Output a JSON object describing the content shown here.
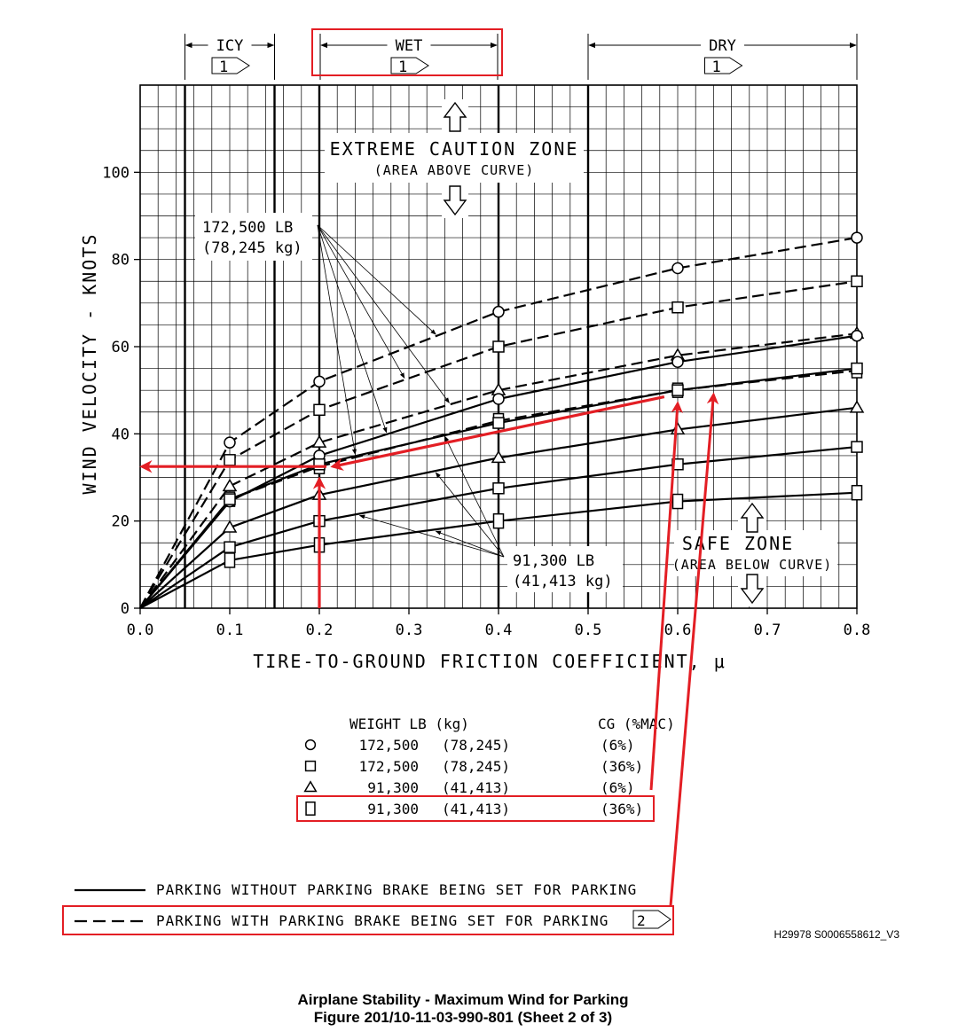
{
  "chart_data": {
    "type": "line",
    "title": "Airplane Stability - Maximum Wind for Parking",
    "subtitle": "Figure 201/10-11-03-990-801  (Sheet 2 of 3)",
    "figure_id": "H29978 S0006558612_V3",
    "xlabel": "TIRE-TO-GROUND FRICTION COEFFICIENT, μ",
    "ylabel": "WIND VELOCITY - KNOTS",
    "xlim": [
      0.0,
      0.8
    ],
    "ylim": [
      0,
      120
    ],
    "xticks": [
      "0.0",
      "0.1",
      "0.2",
      "0.3",
      "0.4",
      "0.5",
      "0.6",
      "0.7",
      "0.8"
    ],
    "yticks": [
      "0",
      "20",
      "40",
      "60",
      "80",
      "100"
    ],
    "grid": true,
    "surface_bands": [
      {
        "label": "ICY",
        "from": 0.05,
        "to": 0.15,
        "note": "1",
        "highlighted": false
      },
      {
        "label": "WET",
        "from": 0.2,
        "to": 0.4,
        "note": "1",
        "highlighted": true
      },
      {
        "label": "DRY",
        "from": 0.5,
        "to": 0.8,
        "note": "1",
        "highlighted": false
      }
    ],
    "zones": {
      "caution_title": "EXTREME CAUTION ZONE",
      "caution_sub": "(AREA ABOVE CURVE)",
      "safe_title": "SAFE ZONE",
      "safe_sub": "(AREA BELOW CURVE)"
    },
    "annotations": {
      "heavy_lb": "172,500 LB",
      "heavy_kg": "(78,245 kg)",
      "light_lb": "91,300 LB",
      "light_kg": "(41,413 kg)"
    },
    "series": [
      {
        "marker": "circle",
        "style": "dashed",
        "x": [
          0,
          0.1,
          0.2,
          0.4,
          0.6,
          0.8
        ],
        "y": [
          0,
          38,
          52,
          68,
          78,
          85
        ]
      },
      {
        "marker": "square",
        "style": "dashed",
        "x": [
          0,
          0.1,
          0.2,
          0.4,
          0.6,
          0.8
        ],
        "y": [
          0,
          34,
          45.5,
          60,
          69,
          75
        ]
      },
      {
        "marker": "triangle",
        "style": "dashed",
        "x": [
          0,
          0.1,
          0.2,
          0.4,
          0.6,
          0.8
        ],
        "y": [
          0,
          28,
          38,
          50,
          58,
          63
        ]
      },
      {
        "marker": "tall-square",
        "style": "dashed",
        "highlighted": true,
        "x": [
          0,
          0.1,
          0.2,
          0.4,
          0.6,
          0.8
        ],
        "y": [
          0,
          25,
          32.5,
          43,
          50,
          54.5
        ]
      },
      {
        "marker": "circle",
        "style": "solid",
        "x": [
          0,
          0.1,
          0.2,
          0.4,
          0.6,
          0.8
        ],
        "y": [
          0,
          24.5,
          35,
          48,
          56.5,
          62.5
        ]
      },
      {
        "marker": "square",
        "style": "solid",
        "x": [
          0,
          0.1,
          0.2,
          0.4,
          0.6,
          0.8
        ],
        "y": [
          0,
          25,
          33,
          42.5,
          50,
          55
        ]
      },
      {
        "marker": "triangle",
        "style": "solid",
        "x": [
          0,
          0.1,
          0.2,
          0.4,
          0.6,
          0.8
        ],
        "y": [
          0,
          18.5,
          26,
          34.5,
          41,
          46
        ]
      },
      {
        "marker": "square",
        "style": "solid",
        "x": [
          0,
          0.1,
          0.2,
          0.4,
          0.6,
          0.8
        ],
        "y": [
          0,
          14,
          20,
          27.5,
          33,
          37
        ]
      },
      {
        "marker": "tall-square",
        "style": "solid",
        "x": [
          0,
          0.1,
          0.2,
          0.4,
          0.6,
          0.8
        ],
        "y": [
          0,
          11,
          14.5,
          20,
          24.5,
          26.5
        ]
      }
    ],
    "weight_legend": {
      "header_weight": "WEIGHT LB (kg)",
      "header_cg": "CG (%MAC)",
      "rows": [
        {
          "marker": "circle",
          "lb": "172,500",
          "kg": "(78,245)",
          "cg": "(6%)",
          "highlighted": false
        },
        {
          "marker": "square",
          "lb": "172,500",
          "kg": "(78,245)",
          "cg": "(36%)",
          "highlighted": false
        },
        {
          "marker": "triangle",
          "lb": "91,300",
          "kg": "(41,413)",
          "cg": "(6%)",
          "highlighted": false
        },
        {
          "marker": "tall-square",
          "lb": "91,300",
          "kg": "(41,413)",
          "cg": "(36%)",
          "highlighted": true
        }
      ]
    },
    "line_legend": [
      {
        "style": "solid",
        "label": "PARKING WITHOUT PARKING BRAKE BEING SET FOR PARKING",
        "note": "",
        "highlighted": false
      },
      {
        "style": "dashed",
        "label": "PARKING WITH PARKING BRAKE BEING SET FOR PARKING",
        "note": "2",
        "highlighted": true
      }
    ],
    "red_overlay": {
      "color": "#e31e24",
      "read_path": [
        [
          0.2,
          0
        ],
        [
          0.2,
          32.5
        ],
        [
          0.0,
          32.5
        ]
      ],
      "trace_arrow_from": [
        0.585,
        48.5
      ],
      "trace_arrow_to": [
        0.215,
        32.5
      ]
    }
  }
}
